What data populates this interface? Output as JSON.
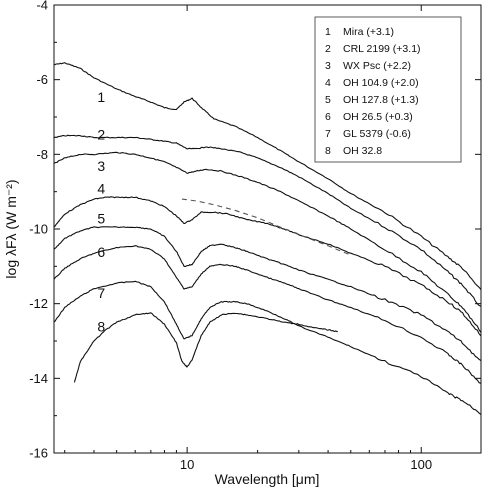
{
  "chart_data": {
    "type": "line",
    "title": "",
    "xlabel": "Wavelength [μm]",
    "ylabel": "log λFλ (W m⁻²)",
    "x_scale": "log",
    "xlim": [
      2.7,
      180
    ],
    "ylim": [
      -16,
      -4
    ],
    "x_ticks": [
      10,
      100
    ],
    "x_tick_labels": [
      "10",
      "100"
    ],
    "y_ticks": [
      -16,
      -14,
      -12,
      -10,
      -8,
      -6,
      -4
    ],
    "y_tick_labels": [
      "-16",
      "-14",
      "-12",
      "-10",
      "-8",
      "-6",
      "-4"
    ],
    "grid": false,
    "legend_position": "top-right",
    "legend": [
      {
        "num": "1",
        "label": "Mira (+3.1)"
      },
      {
        "num": "2",
        "label": "CRL 2199 (+3.1)"
      },
      {
        "num": "3",
        "label": "WX Psc (+2.2)"
      },
      {
        "num": "4",
        "label": "OH 104.9 (+2.0)"
      },
      {
        "num": "5",
        "label": "OH 127.8 (+1.3)"
      },
      {
        "num": "6",
        "label": "OH 26.5 (+0.3)"
      },
      {
        "num": "7",
        "label": "GL 5379 (-0.6)"
      },
      {
        "num": "8",
        "label": "OH 32.8"
      }
    ],
    "series": [
      {
        "name": "1",
        "x": [
          2.7,
          3,
          3.5,
          4,
          5,
          6,
          7,
          8,
          9,
          9.7,
          10.5,
          11.5,
          13,
          16,
          20,
          25,
          30,
          40,
          50,
          70,
          100,
          130,
          150,
          180
        ],
        "y": [
          -5.6,
          -5.55,
          -5.7,
          -5.95,
          -6.25,
          -6.45,
          -6.6,
          -6.75,
          -6.8,
          -6.6,
          -6.5,
          -6.75,
          -7.05,
          -7.25,
          -7.55,
          -7.9,
          -8.2,
          -8.65,
          -9.05,
          -9.55,
          -10.2,
          -10.75,
          -11.05,
          -11.65
        ]
      },
      {
        "name": "2",
        "x": [
          2.7,
          3,
          3.5,
          4,
          5,
          6,
          7,
          8,
          9,
          10,
          11,
          12,
          14,
          17,
          20,
          25,
          30,
          40,
          50,
          70,
          100,
          130,
          150,
          180
        ],
        "y": [
          -7.55,
          -7.5,
          -7.5,
          -7.55,
          -7.55,
          -7.55,
          -7.6,
          -7.65,
          -7.7,
          -7.85,
          -7.85,
          -7.8,
          -7.85,
          -7.95,
          -8.1,
          -8.35,
          -8.6,
          -9.05,
          -9.45,
          -9.95,
          -10.55,
          -11.15,
          -11.5,
          -12.1
        ]
      },
      {
        "name": "3",
        "x": [
          2.7,
          3,
          3.5,
          4,
          5,
          6,
          7,
          8,
          9,
          10,
          11,
          12,
          14,
          17,
          20,
          25,
          30,
          40,
          50,
          70,
          100,
          130,
          150,
          180
        ],
        "y": [
          -8.25,
          -8.1,
          -8.0,
          -8.0,
          -7.95,
          -8.0,
          -8.1,
          -8.2,
          -8.35,
          -8.5,
          -8.45,
          -8.4,
          -8.45,
          -8.6,
          -8.75,
          -9.0,
          -9.25,
          -9.65,
          -10.0,
          -10.55,
          -11.15,
          -11.75,
          -12.1,
          -12.75
        ]
      },
      {
        "name": "4",
        "x": [
          2.7,
          3,
          3.5,
          4,
          4.5,
          5,
          6,
          7,
          8,
          9,
          9.7,
          10.5,
          11.5,
          13,
          15,
          18,
          22,
          26,
          30,
          40,
          50,
          70,
          100,
          130,
          150,
          180
        ],
        "y": [
          -9.95,
          -9.6,
          -9.35,
          -9.2,
          -9.15,
          -9.15,
          -9.15,
          -9.25,
          -9.4,
          -9.65,
          -9.85,
          -9.75,
          -9.55,
          -9.55,
          -9.6,
          -9.75,
          -9.85,
          -10.0,
          -10.15,
          -10.4,
          -10.65,
          -11.0,
          -11.5,
          -11.95,
          -12.25,
          -12.85
        ]
      },
      {
        "name": "5",
        "x": [
          2.7,
          3,
          3.5,
          4,
          5,
          6,
          7,
          8,
          9,
          9.7,
          10.5,
          11.5,
          12.5,
          14,
          16,
          18,
          22,
          26,
          30,
          40,
          50,
          70,
          100,
          130,
          150,
          180
        ],
        "y": [
          -10.55,
          -10.25,
          -10.05,
          -9.95,
          -9.95,
          -9.95,
          -10.0,
          -10.2,
          -10.6,
          -11.0,
          -10.95,
          -10.6,
          -10.45,
          -10.4,
          -10.5,
          -10.6,
          -10.8,
          -10.95,
          -11.1,
          -11.35,
          -11.55,
          -11.9,
          -12.3,
          -12.75,
          -13.05,
          -13.55
        ]
      },
      {
        "name": "6",
        "x": [
          2.7,
          3,
          3.5,
          4,
          5,
          6,
          7,
          8,
          9,
          9.7,
          10.5,
          11.5,
          12.5,
          14,
          16,
          18,
          22,
          26,
          30,
          40,
          50,
          70,
          100,
          130,
          150,
          180
        ],
        "y": [
          -11.35,
          -11.05,
          -10.8,
          -10.65,
          -10.5,
          -10.45,
          -10.55,
          -10.8,
          -11.3,
          -11.6,
          -11.55,
          -11.2,
          -11.0,
          -10.95,
          -11.0,
          -11.1,
          -11.3,
          -11.45,
          -11.6,
          -11.9,
          -12.1,
          -12.45,
          -12.9,
          -13.35,
          -13.65,
          -14.15
        ]
      },
      {
        "name": "7",
        "x": [
          2.7,
          3,
          3.5,
          4,
          5,
          6,
          7,
          8,
          9,
          9.7,
          10.5,
          11.5,
          12.5,
          14,
          16,
          18,
          22,
          26,
          30,
          40,
          50,
          70,
          100,
          130,
          150,
          180
        ],
        "y": [
          -12.5,
          -12.1,
          -11.8,
          -11.6,
          -11.45,
          -11.4,
          -11.55,
          -11.95,
          -12.55,
          -12.95,
          -12.85,
          -12.4,
          -12.1,
          -11.95,
          -11.95,
          -12.0,
          -12.2,
          -12.4,
          -12.6,
          -12.9,
          -13.15,
          -13.55,
          -13.95,
          -14.4,
          -14.6,
          -14.95
        ]
      },
      {
        "name": "8",
        "x": [
          3.3,
          3.5,
          4,
          4.5,
          5,
          6,
          7,
          8,
          9,
          9.5,
          10,
          10.5,
          11.5,
          12.5,
          14,
          16,
          18,
          22,
          26,
          30,
          35,
          40,
          44
        ],
        "y": [
          -14.1,
          -13.55,
          -13.0,
          -12.7,
          -12.5,
          -12.3,
          -12.25,
          -12.55,
          -13.05,
          -13.55,
          -13.7,
          -13.5,
          -12.85,
          -12.5,
          -12.3,
          -12.25,
          -12.3,
          -12.4,
          -12.5,
          -12.55,
          -12.65,
          -12.7,
          -12.75
        ]
      }
    ],
    "reference_line": {
      "style": "dashed",
      "x": [
        9.5,
        11,
        13,
        16,
        20,
        25,
        30,
        40,
        50
      ],
      "y": [
        -9.2,
        -9.25,
        -9.35,
        -9.5,
        -9.7,
        -9.95,
        -10.15,
        -10.45,
        -10.7
      ]
    },
    "curve_labels": [
      {
        "text": "1",
        "x": 4.3,
        "y": -6.6
      },
      {
        "text": "2",
        "x": 4.3,
        "y": -7.6
      },
      {
        "text": "3",
        "x": 4.3,
        "y": -8.45
      },
      {
        "text": "4",
        "x": 4.3,
        "y": -9.05
      },
      {
        "text": "5",
        "x": 4.3,
        "y": -9.85
      },
      {
        "text": "6",
        "x": 4.3,
        "y": -10.75
      },
      {
        "text": "7",
        "x": 4.3,
        "y": -11.85
      },
      {
        "text": "8",
        "x": 4.3,
        "y": -12.75
      }
    ]
  }
}
